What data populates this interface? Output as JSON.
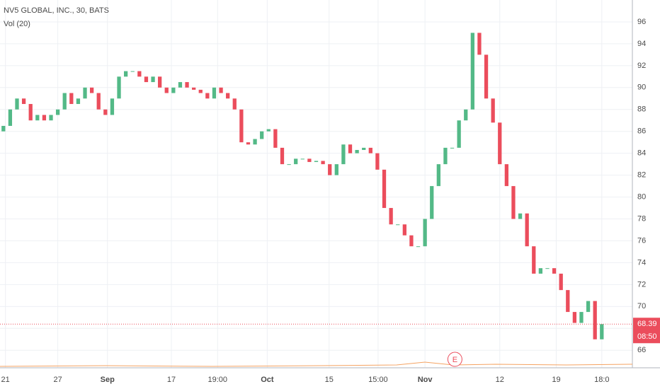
{
  "chart_data": {
    "type": "candlestick",
    "title": "NV5 GLOBAL, INC., 30, BATS",
    "subtitle": "Vol (20)",
    "open": [
      86,
      86.5,
      88,
      89,
      88.5,
      87,
      87.5,
      87,
      87.5,
      88,
      89.5,
      88.5,
      89,
      90,
      89.5,
      88,
      87.5,
      89,
      91,
      91.5,
      91.5,
      91,
      90.5,
      91,
      90,
      89.5,
      90,
      90.5,
      90,
      89.8,
      89.5,
      89,
      90,
      89.5,
      89,
      88,
      85,
      84.8,
      85.3,
      86,
      86.2,
      84.5,
      83,
      83,
      83.5,
      83.5,
      83.2,
      83.3,
      83,
      82,
      83,
      84.8,
      84,
      84.3,
      84.5,
      84,
      82.5,
      79,
      77.5,
      77.5,
      76.5,
      75.5,
      75.5,
      78,
      81,
      83,
      84.5,
      84.5,
      87,
      88,
      95,
      93,
      89,
      86.8,
      83,
      81,
      78,
      78.5,
      75.5,
      73,
      73.5,
      73.5,
      73,
      71.5,
      69.5,
      68.5,
      69.5,
      70.5,
      67
    ],
    "close": [
      86.5,
      88,
      89,
      88.5,
      87,
      87.5,
      87,
      87.5,
      88,
      89.5,
      88.5,
      89,
      90,
      89.5,
      88,
      87.5,
      89,
      91,
      91.5,
      91.5,
      91,
      90.5,
      91,
      90,
      89.5,
      90,
      90.5,
      90,
      89.8,
      89.5,
      89,
      90,
      89.5,
      89,
      88,
      85,
      84.8,
      85.3,
      86,
      86.2,
      84.5,
      83,
      83,
      83.5,
      83.5,
      83.2,
      83.3,
      83,
      82,
      83,
      84.8,
      84,
      84.3,
      84.5,
      84,
      82.5,
      79,
      77.5,
      77.5,
      76.5,
      75.5,
      75.5,
      78,
      81,
      83,
      84.5,
      84.5,
      87,
      88,
      95,
      93,
      89,
      86.8,
      83,
      81,
      78,
      78.5,
      75.5,
      73,
      73.5,
      73.5,
      73,
      71.5,
      69.5,
      68.5,
      69.5,
      70.5,
      67,
      68.39
    ],
    "up_color": "#53b987",
    "down_color": "#eb4d5c",
    "ylim": [
      64.4,
      98
    ],
    "yticks": [
      66,
      68,
      70,
      72,
      74,
      76,
      78,
      80,
      82,
      84,
      86,
      88,
      90,
      92,
      94,
      96
    ],
    "xlim": [
      -0.5,
      92.5
    ],
    "xticks": [
      {
        "value": 0.3,
        "label": "21"
      },
      {
        "value": 8,
        "label": "27"
      },
      {
        "value": 15.3,
        "label": "Sep"
      },
      {
        "value": 24.7,
        "label": "17"
      },
      {
        "value": 31.5,
        "label": "19:00"
      },
      {
        "value": 38.8,
        "label": "Oct"
      },
      {
        "value": 47.9,
        "label": "15"
      },
      {
        "value": 55.1,
        "label": "15:00"
      },
      {
        "value": 62,
        "label": "Nov"
      },
      {
        "value": 73,
        "label": "12"
      },
      {
        "value": 81.3,
        "label": "19"
      },
      {
        "value": 88,
        "label": "18:0"
      }
    ],
    "countdown": "08:50",
    "earnings_marker": "E",
    "grid": true
  }
}
